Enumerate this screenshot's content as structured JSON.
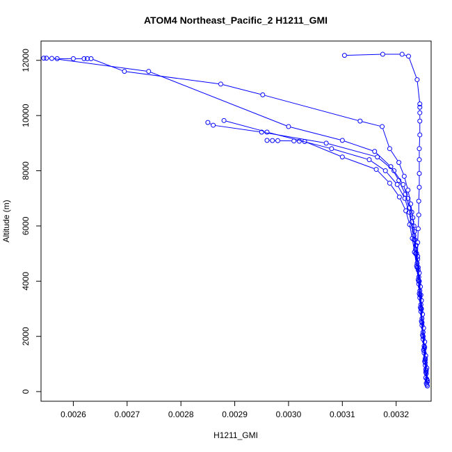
{
  "chart_data": {
    "type": "scatter",
    "title": "ATOM4 Northeast_Pacific_2 H1211_GMI",
    "xlabel": "H1211_GMI",
    "ylabel": "Altitude (m)",
    "xlim": [
      0.00254,
      0.003265
    ],
    "ylim": [
      -350,
      12700
    ],
    "xticks": [
      0.0026,
      0.0027,
      0.0028,
      0.0029,
      0.003,
      0.0031,
      0.0032
    ],
    "xtick_labels": [
      "0.0026",
      "0.0027",
      "0.0028",
      "0.0029",
      "0.0030",
      "0.0031",
      "0.0032"
    ],
    "yticks": [
      0,
      2000,
      4000,
      6000,
      8000,
      10000,
      12000
    ],
    "ytick_labels": [
      "0",
      "2000",
      "4000",
      "6000",
      "8000",
      "10000",
      "12000"
    ],
    "grid": false,
    "style": "lines+points",
    "series_color": "#0000ff",
    "series": [
      {
        "points": [
          [
            0.003258,
            200
          ],
          [
            0.003257,
            450
          ],
          [
            0.003255,
            800
          ],
          [
            0.003254,
            1200
          ],
          [
            0.003253,
            1600
          ],
          [
            0.00325,
            2000
          ],
          [
            0.003248,
            2500
          ],
          [
            0.003247,
            3000
          ],
          [
            0.003246,
            3500
          ],
          [
            0.003243,
            4000
          ],
          [
            0.003241,
            4500
          ],
          [
            0.003238,
            5000
          ],
          [
            0.003235,
            5500
          ],
          [
            0.003233,
            6000
          ],
          [
            0.003229,
            6500
          ],
          [
            0.003222,
            7000
          ],
          [
            0.003213,
            7500
          ],
          [
            0.003196,
            8000
          ],
          [
            0.003165,
            8500
          ],
          [
            0.00307,
            9000
          ],
          [
            0.00295,
            9400
          ],
          [
            0.00286,
            9650
          ],
          [
            0.00285,
            9750
          ]
        ]
      },
      {
        "points": [
          [
            0.003256,
            300
          ],
          [
            0.003255,
            700
          ],
          [
            0.003253,
            1100
          ],
          [
            0.003251,
            1500
          ],
          [
            0.00325,
            2000
          ],
          [
            0.003248,
            2500
          ],
          [
            0.003246,
            3000
          ],
          [
            0.003244,
            3500
          ],
          [
            0.003242,
            4000
          ],
          [
            0.003239,
            4500
          ],
          [
            0.003236,
            5000
          ],
          [
            0.003233,
            5500
          ],
          [
            0.003229,
            6000
          ],
          [
            0.003224,
            6500
          ],
          [
            0.003216,
            7000
          ],
          [
            0.003202,
            7500
          ],
          [
            0.00318,
            8000
          ],
          [
            0.00315,
            8400
          ],
          [
            0.00308,
            8800
          ],
          [
            0.00296,
            9400
          ],
          [
            0.00288,
            9820
          ]
        ]
      },
      {
        "points": [
          [
            0.003257,
            250
          ],
          [
            0.003256,
            650
          ],
          [
            0.003254,
            1050
          ],
          [
            0.003252,
            1550
          ],
          [
            0.003249,
            2050
          ],
          [
            0.003247,
            2550
          ],
          [
            0.003245,
            3050
          ],
          [
            0.003243,
            3550
          ],
          [
            0.003241,
            4050
          ],
          [
            0.003238,
            4550
          ],
          [
            0.003234,
            5050
          ],
          [
            0.00323,
            5550
          ],
          [
            0.003225,
            6050
          ],
          [
            0.003218,
            6550
          ],
          [
            0.003206,
            7050
          ],
          [
            0.003188,
            7550
          ],
          [
            0.003163,
            8050
          ],
          [
            0.0031,
            8500
          ],
          [
            0.00303,
            9060
          ],
          [
            0.00302,
            9070
          ],
          [
            0.00301,
            9080
          ],
          [
            0.00298,
            9090
          ],
          [
            0.00297,
            9095
          ],
          [
            0.00296,
            9100
          ]
        ]
      },
      {
        "points": [
          [
            0.003258,
            350
          ],
          [
            0.003256,
            750
          ],
          [
            0.003254,
            1150
          ],
          [
            0.003252,
            1650
          ],
          [
            0.00325,
            2150
          ],
          [
            0.003248,
            2650
          ],
          [
            0.003246,
            3150
          ],
          [
            0.003244,
            3650
          ],
          [
            0.003242,
            4150
          ],
          [
            0.003239,
            4650
          ],
          [
            0.003236,
            5150
          ],
          [
            0.003233,
            5650
          ],
          [
            0.003229,
            6150
          ],
          [
            0.003224,
            6650
          ],
          [
            0.003217,
            7150
          ],
          [
            0.003205,
            7650
          ],
          [
            0.00319,
            8150
          ],
          [
            0.00316,
            8700
          ],
          [
            0.0031,
            9100
          ],
          [
            0.003,
            9600
          ],
          [
            0.00274,
            11600
          ],
          [
            0.00256,
            12070
          ],
          [
            0.00255,
            12080
          ],
          [
            0.002545,
            12080
          ]
        ]
      },
      {
        "points": [
          [
            0.003258,
            400
          ],
          [
            0.003257,
            850
          ],
          [
            0.003255,
            1300
          ],
          [
            0.003253,
            1800
          ],
          [
            0.003251,
            2300
          ],
          [
            0.003249,
            2800
          ],
          [
            0.003247,
            3300
          ],
          [
            0.003245,
            3800
          ],
          [
            0.003243,
            4300
          ],
          [
            0.00324,
            4800
          ],
          [
            0.003237,
            5300
          ],
          [
            0.003234,
            5800
          ],
          [
            0.003231,
            6300
          ],
          [
            0.003227,
            6800
          ],
          [
            0.003222,
            7300
          ],
          [
            0.003215,
            7800
          ],
          [
            0.003205,
            8300
          ],
          [
            0.003188,
            8800
          ],
          [
            0.003174,
            9600
          ],
          [
            0.003133,
            9800
          ],
          [
            0.002952,
            10750
          ],
          [
            0.002874,
            11140
          ],
          [
            0.002695,
            11600
          ],
          [
            0.002633,
            12060
          ],
          [
            0.002626,
            12060
          ],
          [
            0.00262,
            12060
          ],
          [
            0.0026,
            12060
          ],
          [
            0.00257,
            12060
          ]
        ]
      },
      {
        "points": [
          [
            0.003255,
            500
          ],
          [
            0.003254,
            950
          ],
          [
            0.003252,
            1400
          ],
          [
            0.00325,
            1900
          ],
          [
            0.003248,
            2400
          ],
          [
            0.003246,
            2900
          ],
          [
            0.003244,
            3400
          ],
          [
            0.003242,
            3900
          ],
          [
            0.003241,
            4400
          ],
          [
            0.00324,
            4900
          ],
          [
            0.00324,
            5400
          ],
          [
            0.003241,
            5900
          ],
          [
            0.003242,
            6400
          ],
          [
            0.003242,
            6900
          ],
          [
            0.003243,
            7400
          ],
          [
            0.003243,
            7900
          ],
          [
            0.003243,
            8400
          ],
          [
            0.003243,
            8800
          ],
          [
            0.003244,
            9300
          ],
          [
            0.003244,
            9800
          ],
          [
            0.003244,
            10100
          ],
          [
            0.003244,
            10300
          ],
          [
            0.003244,
            10420
          ],
          [
            0.003239,
            11300
          ],
          [
            0.003223,
            12150
          ],
          [
            0.003211,
            12220
          ],
          [
            0.003175,
            12220
          ],
          [
            0.003104,
            12180
          ]
        ]
      }
    ]
  }
}
